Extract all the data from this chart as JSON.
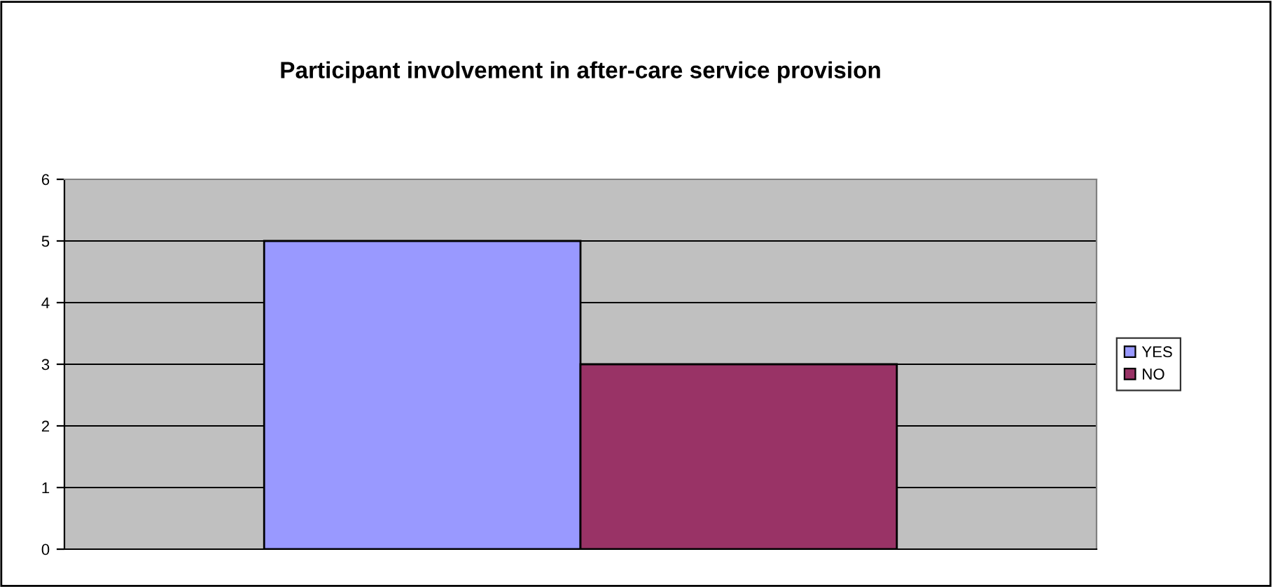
{
  "chart_data": {
    "type": "bar",
    "title": "Participant involvement in after-care service provision",
    "categories": [
      null
    ],
    "series": [
      {
        "name": "YES",
        "color": "#9999ff",
        "values": [
          5
        ]
      },
      {
        "name": "NO",
        "color": "#993366",
        "values": [
          3
        ]
      }
    ],
    "ylim": [
      0,
      6
    ],
    "yticks": [
      0,
      1,
      2,
      3,
      4,
      5,
      6
    ],
    "grid": "y",
    "legend": "right",
    "tick_labels": "y"
  }
}
